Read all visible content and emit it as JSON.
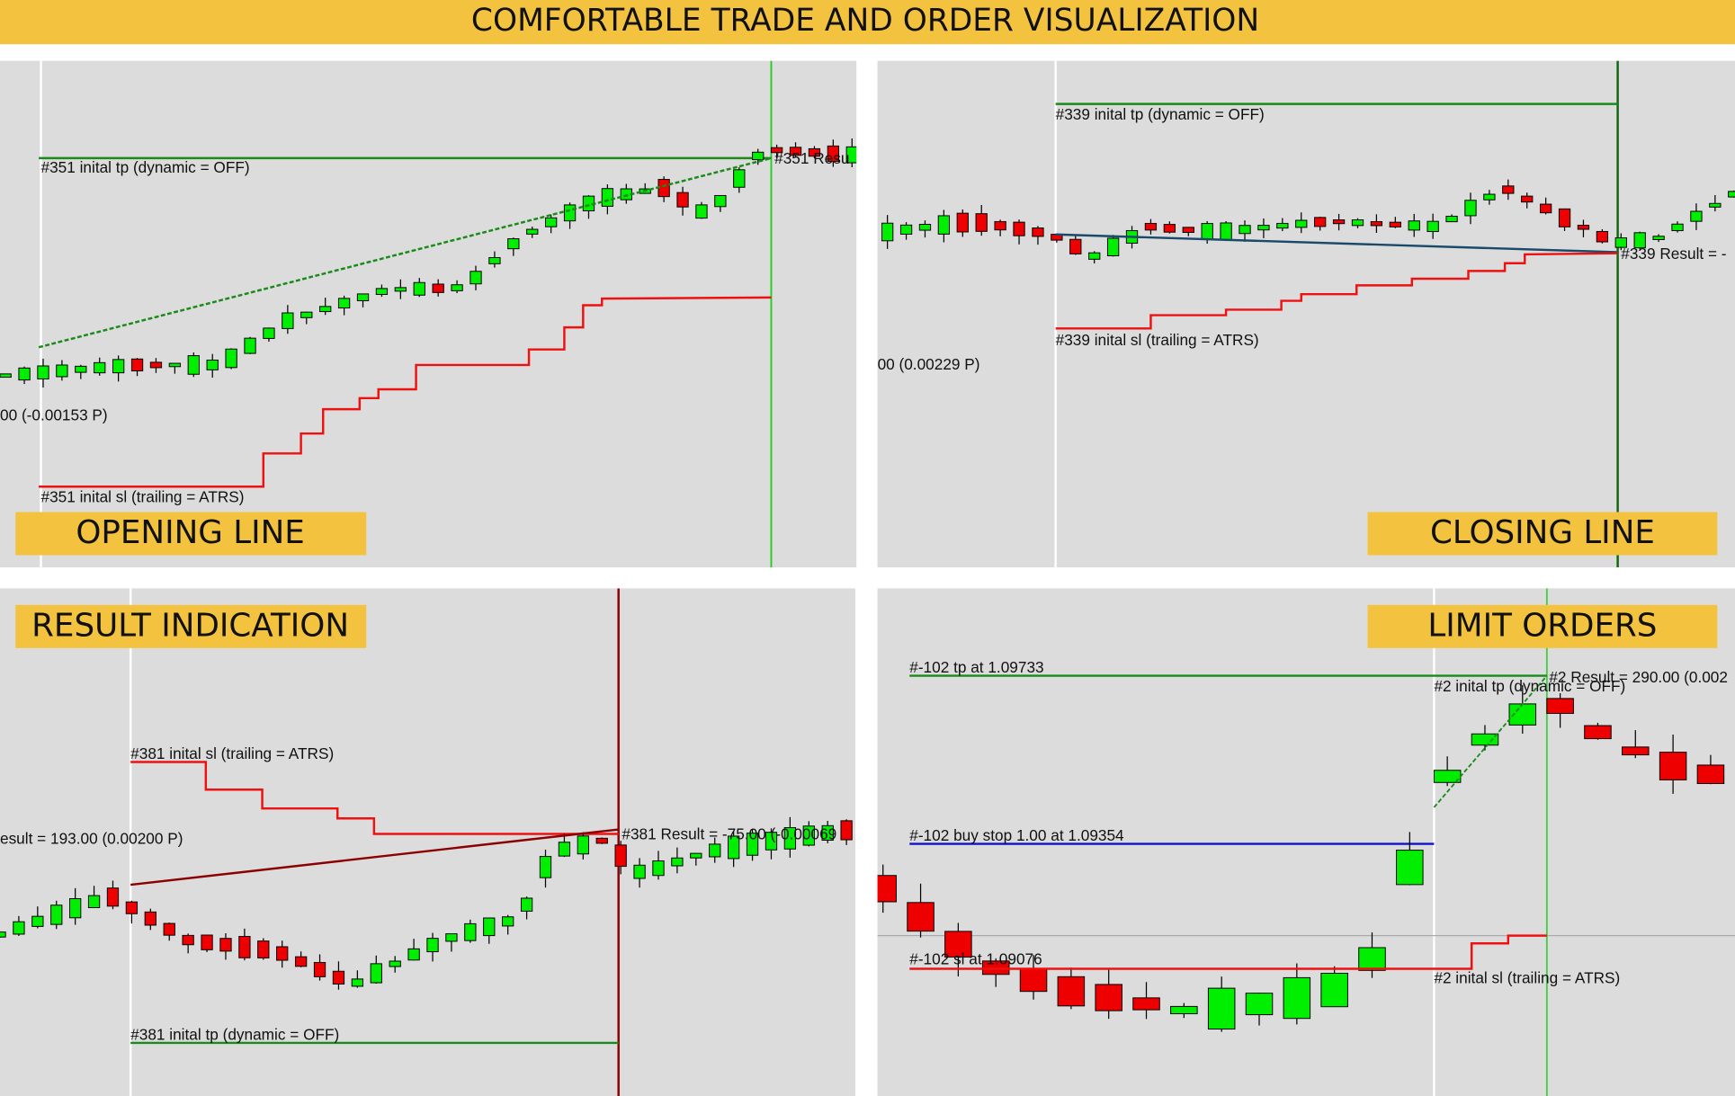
{
  "header": {
    "title": "COMFORTABLE TRADE AND ORDER VISUALIZATION"
  },
  "panels": [
    {
      "label": "OPENING LINE",
      "annotations": [
        "#351 inital tp (dynamic = OFF)",
        "#351 inital sl (trailing = ATRS)",
        "00 (-0.00153 P)",
        "#351 Resu"
      ]
    },
    {
      "label": "CLOSING LINE",
      "annotations": [
        "#339 inital tp (dynamic = OFF)",
        "#339 inital sl (trailing = ATRS)",
        "00 (0.00229 P)",
        "#339 Result = -"
      ]
    },
    {
      "label": "RESULT INDICATION",
      "annotations": [
        "#381 inital sl (trailing = ATRS)",
        "esult = 193.00 (0.00200 P)",
        "#381 Result = -75.00 (-0.00069",
        "#381 inital tp (dynamic = OFF)"
      ]
    },
    {
      "label": "LIMIT ORDERS",
      "annotations": [
        "#-102 tp at 1.09733",
        "#2 Result = 290.00 (0.002",
        "#2 inital tp (dynamic = OFF)",
        "#-102 buy stop 1.00 at 1.09354",
        "#-102 sl at 1.09076",
        "#2 inital sl (trailing = ATRS)"
      ]
    }
  ]
}
